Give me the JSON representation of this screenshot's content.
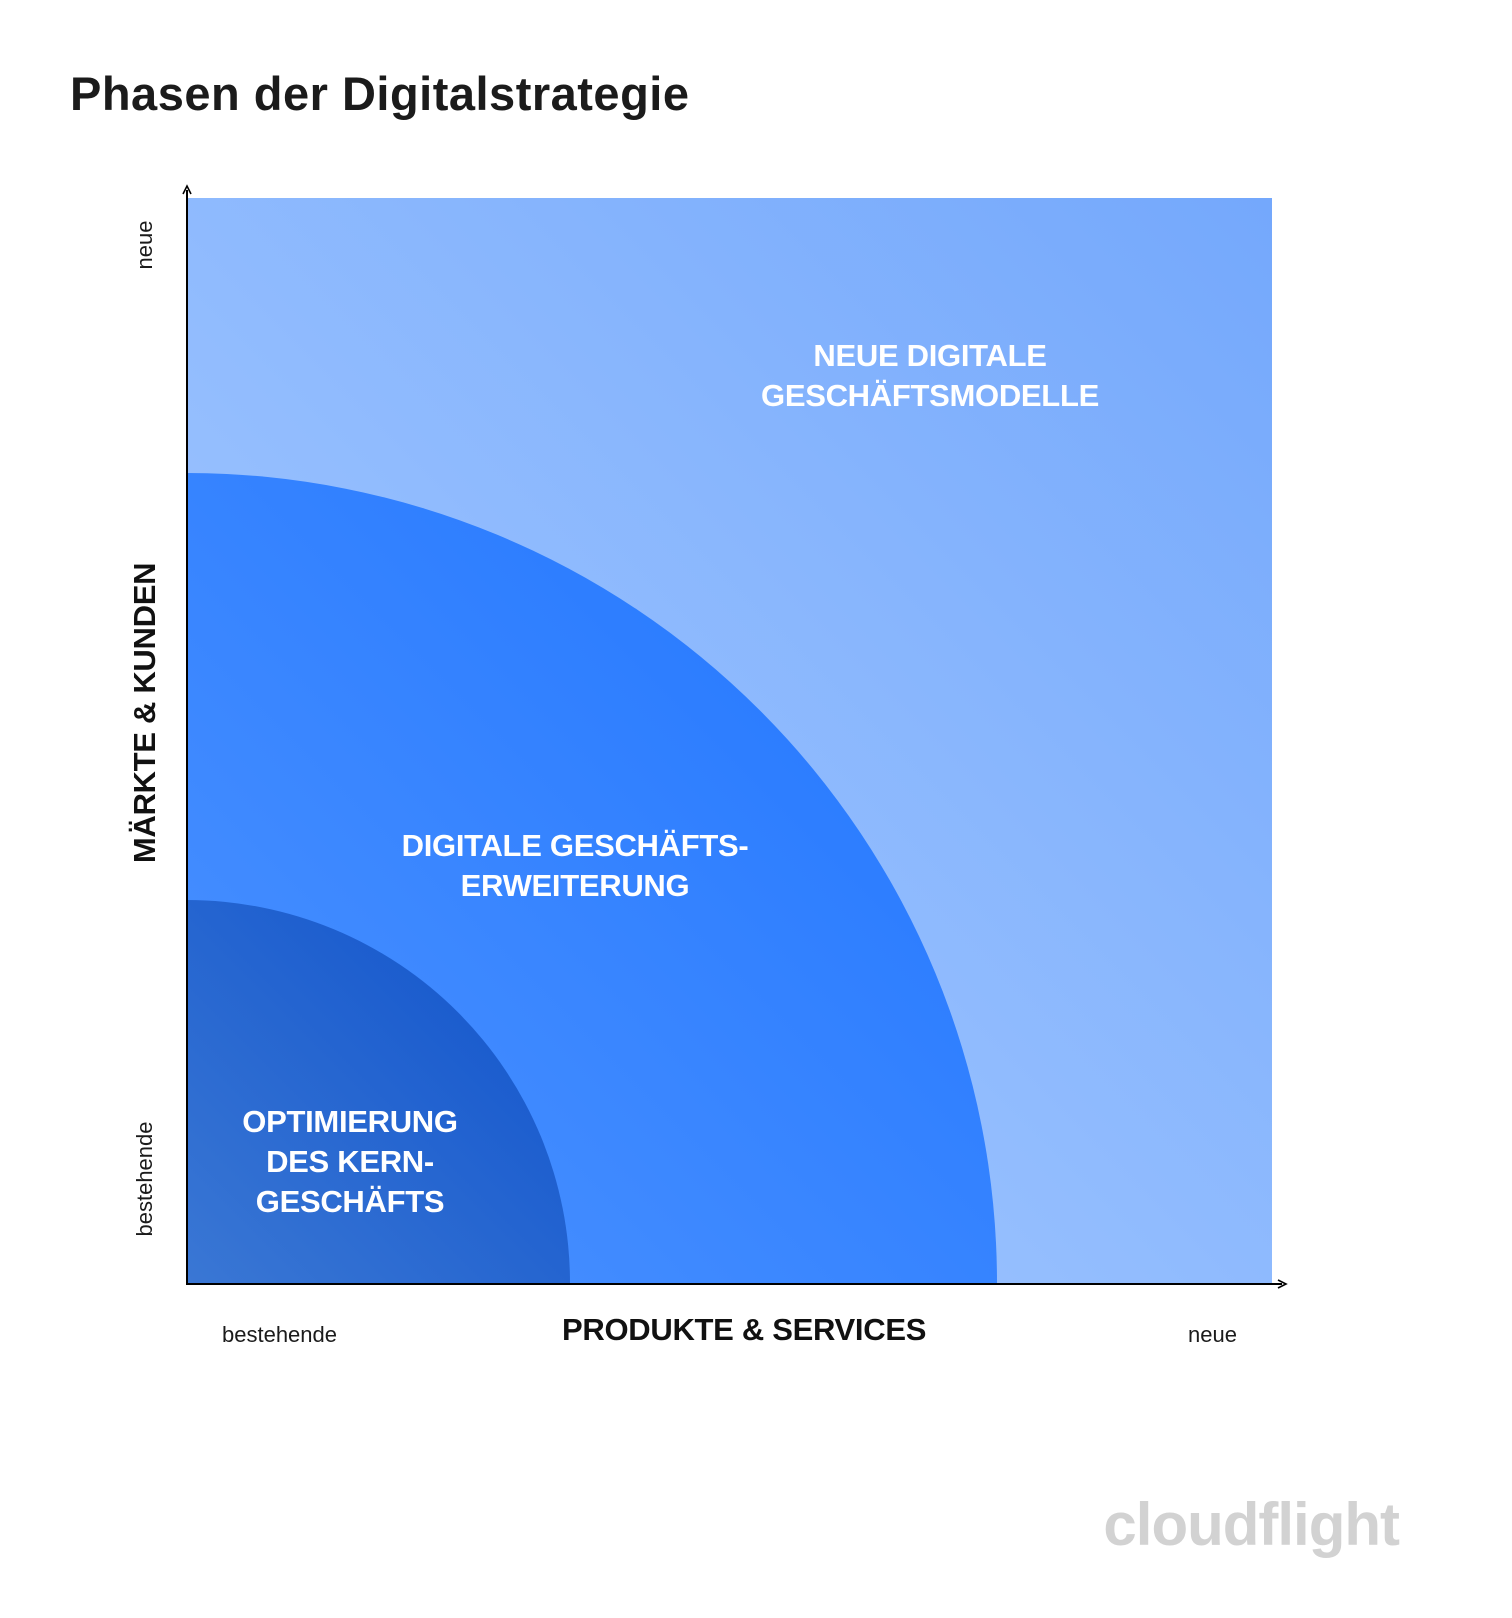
{
  "title": "Phasen der Digitalstrategie",
  "zones": {
    "outer": [
      "NEUE DIGITALE",
      "GESCHÄFTSMODELLE"
    ],
    "middle": [
      "DIGITALE GESCHÄFTS-",
      "ERWEITERUNG"
    ],
    "inner": [
      "OPTIMIERUNG",
      "DES KERN-",
      "GESCHÄFTS"
    ]
  },
  "axes": {
    "x": {
      "title": "PRODUKTE & SERVICES",
      "low": "bestehende",
      "high": "neue"
    },
    "y": {
      "title": "MÄRKTE & KUNDEN",
      "low": "bestehende",
      "high": "neue"
    }
  },
  "colors": {
    "outer": "#8fb9fd",
    "middle": "#2a7cff",
    "inner": "#1556cf"
  },
  "logo": "cloudflight"
}
